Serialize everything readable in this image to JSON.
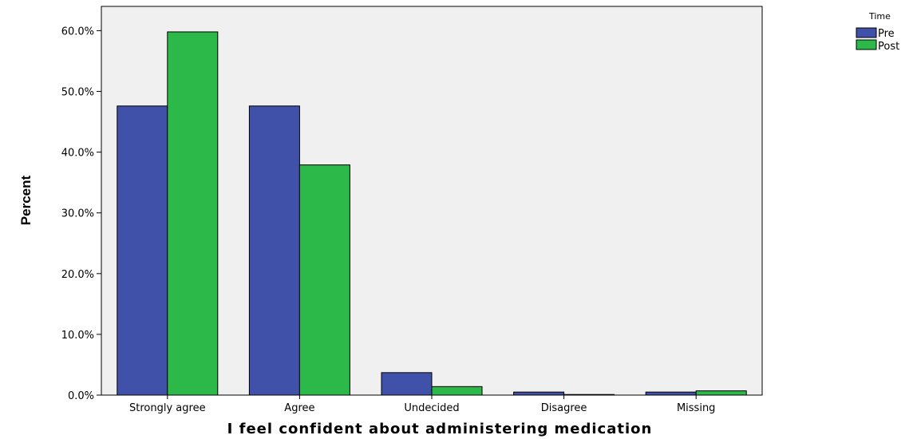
{
  "chart_data": {
    "type": "bar",
    "categories": [
      "Strongly agree",
      "Agree",
      "Undecided",
      "Disagree",
      "Missing"
    ],
    "series": [
      {
        "name": "Pre",
        "values": [
          47.6,
          47.6,
          3.7,
          0.5,
          0.5
        ]
      },
      {
        "name": "Post",
        "values": [
          59.8,
          37.9,
          1.4,
          0.1,
          0.7
        ]
      }
    ],
    "colors": {
      "Pre": "#3f51a9",
      "Post": "#2db84a"
    },
    "xlabel": "I feel confident about administering medication",
    "ylabel": "Percent",
    "ylim": [
      0,
      64
    ],
    "yticks": [
      0,
      10,
      20,
      30,
      40,
      50,
      60
    ],
    "ytick_labels": [
      "0.0%",
      "10.0%",
      "20.0%",
      "30.0%",
      "40.0%",
      "50.0%",
      "60.0%"
    ],
    "legend": {
      "title": "Time",
      "position": "top-right"
    },
    "grid": false,
    "plot_background": "#f0f0f0"
  }
}
